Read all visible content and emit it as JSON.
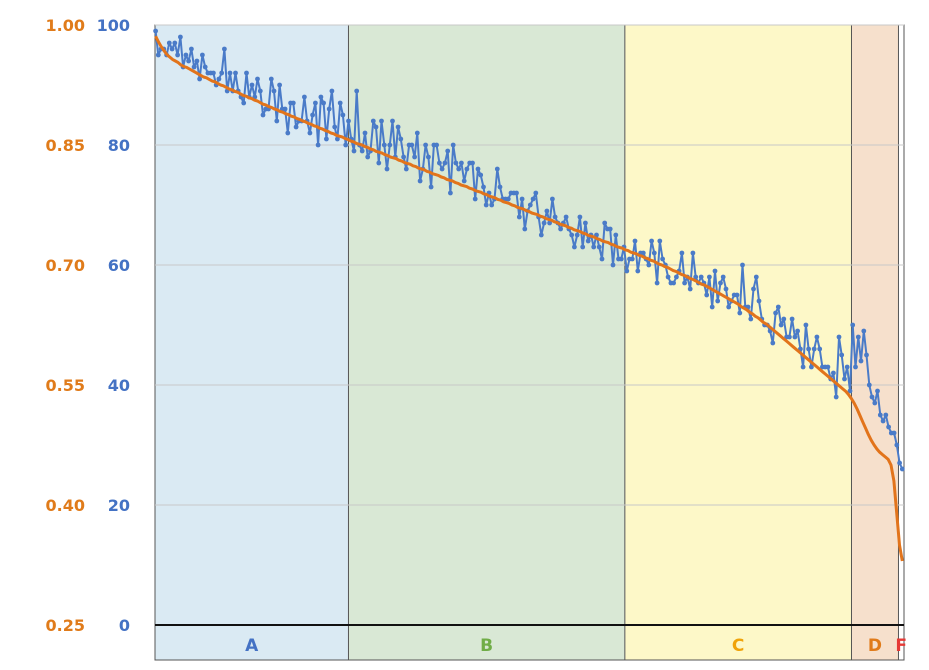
{
  "chart_data": {
    "type": "line",
    "title": "",
    "xlabel": "",
    "ylabel": "",
    "grid": true,
    "legend": "none",
    "y_axes": {
      "primary": {
        "side": "left-outer",
        "color": "#e07b1a",
        "range": [
          0.25,
          1.0
        ],
        "ticks": [
          "0.25",
          "0.40",
          "0.55",
          "0.70",
          "0.85",
          "1.00"
        ]
      },
      "secondary": {
        "side": "left-inner",
        "color": "#4472c4",
        "range": [
          0,
          100
        ],
        "ticks": [
          "0",
          "20",
          "40",
          "60",
          "80",
          "100"
        ]
      }
    },
    "bands": [
      {
        "label": "A",
        "start": 0,
        "end": 70,
        "fill": "#daeaf3",
        "label_color": "#4472c4"
      },
      {
        "label": "B",
        "start": 70,
        "end": 170,
        "fill": "#d9e8d5",
        "label_color": "#70ad47"
      },
      {
        "label": "C",
        "start": 170,
        "end": 252,
        "fill": "#fdf8c8",
        "label_color": "#f0a30a"
      },
      {
        "label": "D",
        "start": 252,
        "end": 269,
        "fill": "#f6e0cc",
        "label_color": "#e07b1a"
      },
      {
        "label": "F",
        "start": 269,
        "end": 271,
        "fill": "#ffffff",
        "label_color": "#e53935"
      }
    ],
    "x_range": [
      0,
      271
    ],
    "series": [
      {
        "axis": "secondary",
        "color": "#4a7bc8",
        "style": "line-markers",
        "y": [
          99,
          95,
          96,
          96,
          95,
          97,
          96,
          97,
          95,
          98,
          93,
          95,
          94,
          96,
          93,
          94,
          91,
          95,
          93,
          92,
          92,
          92,
          90,
          91,
          92,
          96,
          89,
          92,
          89,
          92,
          89,
          88,
          87,
          92,
          88,
          90,
          88,
          91,
          89,
          85,
          86,
          86,
          91,
          89,
          84,
          90,
          86,
          86,
          82,
          87,
          87,
          83,
          84,
          84,
          88,
          84,
          82,
          85,
          87,
          80,
          88,
          87,
          81,
          86,
          89,
          83,
          81,
          87,
          85,
          80,
          84,
          81,
          79,
          89,
          80,
          79,
          82,
          78,
          79,
          84,
          83,
          77,
          84,
          80,
          76,
          80,
          84,
          78,
          83,
          81,
          78,
          76,
          80,
          80,
          78,
          82,
          74,
          76,
          80,
          78,
          73,
          80,
          80,
          77,
          76,
          77,
          79,
          72,
          80,
          77,
          76,
          77,
          74,
          76,
          77,
          77,
          71,
          76,
          75,
          73,
          70,
          72,
          70,
          71,
          76,
          73,
          71,
          71,
          71,
          72,
          72,
          72,
          68,
          71,
          66,
          69,
          70,
          71,
          72,
          68,
          65,
          67,
          69,
          67,
          71,
          68,
          67,
          66,
          67,
          68,
          66,
          65,
          63,
          65,
          68,
          63,
          67,
          64,
          65,
          63,
          65,
          63,
          61,
          67,
          66,
          66,
          60,
          65,
          61,
          61,
          63,
          59,
          61,
          61,
          64,
          59,
          62,
          62,
          61,
          60,
          64,
          62,
          57,
          64,
          61,
          60,
          58,
          57,
          57,
          58,
          59,
          62,
          57,
          58,
          56,
          62,
          58,
          57,
          58,
          57,
          55,
          58,
          53,
          59,
          54,
          57,
          58,
          56,
          53,
          54,
          55,
          55,
          52,
          60,
          53,
          53,
          51,
          56,
          58,
          54,
          51,
          50,
          50,
          49,
          47,
          52,
          53,
          50,
          51,
          48,
          48,
          51,
          48,
          49,
          46,
          43,
          50,
          46,
          43,
          46,
          48,
          46,
          43,
          43,
          43,
          41,
          42,
          38,
          48,
          45,
          41,
          43,
          39,
          50,
          43,
          48,
          44,
          49,
          45,
          40,
          38,
          37,
          39,
          35,
          34,
          35,
          33,
          32,
          32,
          30,
          27,
          26
        ]
      },
      {
        "axis": "primary",
        "color": "#e2741b",
        "style": "line",
        "y": [
          0.986,
          0.979,
          0.973,
          0.968,
          0.963,
          0.96,
          0.957,
          0.955,
          0.953,
          0.95,
          0.948,
          0.947,
          0.945,
          0.943,
          0.941,
          0.939,
          0.937,
          0.935,
          0.934,
          0.932,
          0.93,
          0.929,
          0.927,
          0.925,
          0.924,
          0.922,
          0.92,
          0.919,
          0.917,
          0.916,
          0.914,
          0.912,
          0.911,
          0.909,
          0.908,
          0.906,
          0.905,
          0.903,
          0.901,
          0.9,
          0.898,
          0.897,
          0.895,
          0.894,
          0.892,
          0.891,
          0.889,
          0.888,
          0.886,
          0.885,
          0.883,
          0.882,
          0.88,
          0.879,
          0.877,
          0.876,
          0.874,
          0.873,
          0.871,
          0.87,
          0.868,
          0.867,
          0.865,
          0.864,
          0.862,
          0.861,
          0.86,
          0.858,
          0.857,
          0.855,
          0.854,
          0.852,
          0.851,
          0.85,
          0.848,
          0.847,
          0.845,
          0.844,
          0.842,
          0.841,
          0.84,
          0.838,
          0.837,
          0.835,
          0.834,
          0.833,
          0.831,
          0.83,
          0.828,
          0.827,
          0.826,
          0.824,
          0.823,
          0.821,
          0.82,
          0.819,
          0.817,
          0.816,
          0.814,
          0.813,
          0.812,
          0.81,
          0.809,
          0.807,
          0.806,
          0.805,
          0.803,
          0.802,
          0.8,
          0.799,
          0.798,
          0.796,
          0.795,
          0.793,
          0.792,
          0.791,
          0.789,
          0.788,
          0.786,
          0.785,
          0.784,
          0.782,
          0.781,
          0.779,
          0.778,
          0.777,
          0.775,
          0.774,
          0.772,
          0.771,
          0.77,
          0.768,
          0.767,
          0.765,
          0.764,
          0.763,
          0.761,
          0.76,
          0.758,
          0.757,
          0.756,
          0.754,
          0.753,
          0.751,
          0.75,
          0.749,
          0.747,
          0.746,
          0.744,
          0.743,
          0.742,
          0.74,
          0.739,
          0.737,
          0.736,
          0.735,
          0.733,
          0.732,
          0.73,
          0.729,
          0.728,
          0.726,
          0.725,
          0.723,
          0.722,
          0.721,
          0.719,
          0.718,
          0.716,
          0.715,
          0.714,
          0.712,
          0.711,
          0.709,
          0.708,
          0.706,
          0.705,
          0.703,
          0.701,
          0.7,
          0.698,
          0.697,
          0.695,
          0.693,
          0.692,
          0.69,
          0.688,
          0.687,
          0.685,
          0.683,
          0.682,
          0.68,
          0.678,
          0.676,
          0.675,
          0.673,
          0.671,
          0.669,
          0.667,
          0.665,
          0.663,
          0.661,
          0.659,
          0.657,
          0.655,
          0.653,
          0.651,
          0.648,
          0.646,
          0.644,
          0.641,
          0.639,
          0.636,
          0.634,
          0.631,
          0.628,
          0.626,
          0.623,
          0.62,
          0.617,
          0.614,
          0.611,
          0.608,
          0.605,
          0.602,
          0.599,
          0.596,
          0.593,
          0.59,
          0.587,
          0.584,
          0.581,
          0.578,
          0.575,
          0.572,
          0.569,
          0.566,
          0.563,
          0.56,
          0.557,
          0.554,
          0.551,
          0.548,
          0.545,
          0.542,
          0.538,
          0.533,
          0.527,
          0.52,
          0.512,
          0.504,
          0.496,
          0.488,
          0.481,
          0.475,
          0.47,
          0.466,
          0.463,
          0.46,
          0.457,
          0.45,
          0.43,
          0.39,
          0.35,
          0.33
        ]
      }
    ]
  }
}
